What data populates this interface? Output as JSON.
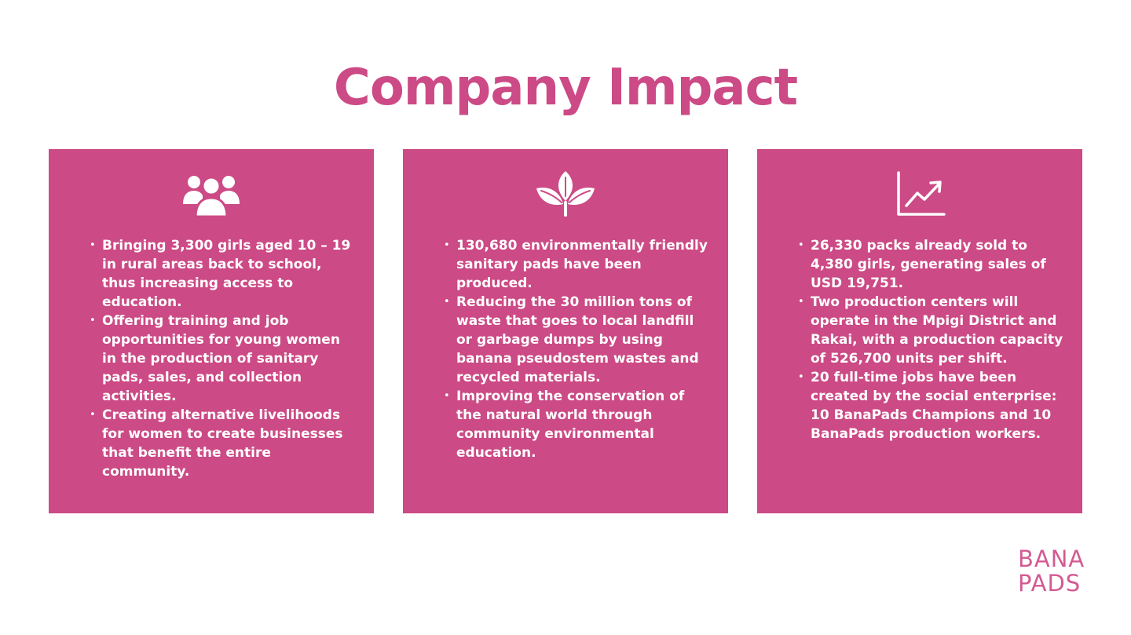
{
  "title": "Company Impact",
  "colors": {
    "accent": "#cc4a85",
    "text_on_accent": "#ffffff",
    "background": "#ffffff"
  },
  "cards": [
    {
      "icon": "people-group-icon",
      "bullets": [
        "Bringing 3,300 girls aged 10 – 19 in rural areas back to school, thus increasing access to education.",
        "Offering training and job opportunities for young women in the production of sanitary pads, sales, and collection activities.",
        "Creating alternative livelihoods for women to create businesses that benefit the entire community."
      ]
    },
    {
      "icon": "leaves-icon",
      "bullets": [
        "130,680 environmentally friendly sanitary pads have been produced.",
        "Reducing the 30 million tons of waste that goes to local landfill or garbage dumps by using banana pseudostem wastes and recycled materials.",
        "Improving the conservation of the natural world through community environmental education."
      ]
    },
    {
      "icon": "growth-chart-icon",
      "bullets": [
        "26,330 packs already sold to 4,380 girls, generating sales of USD 19,751.",
        "Two production centers will operate in the Mpigi District and Rakai, with a production capacity of 526,700 units per shift.",
        "20 full-time jobs have been created by the social enterprise: 10 BanaPads Champions and 10 BanaPads production workers."
      ]
    }
  ],
  "logo": {
    "line1": "BANA",
    "line2": "PADS"
  }
}
